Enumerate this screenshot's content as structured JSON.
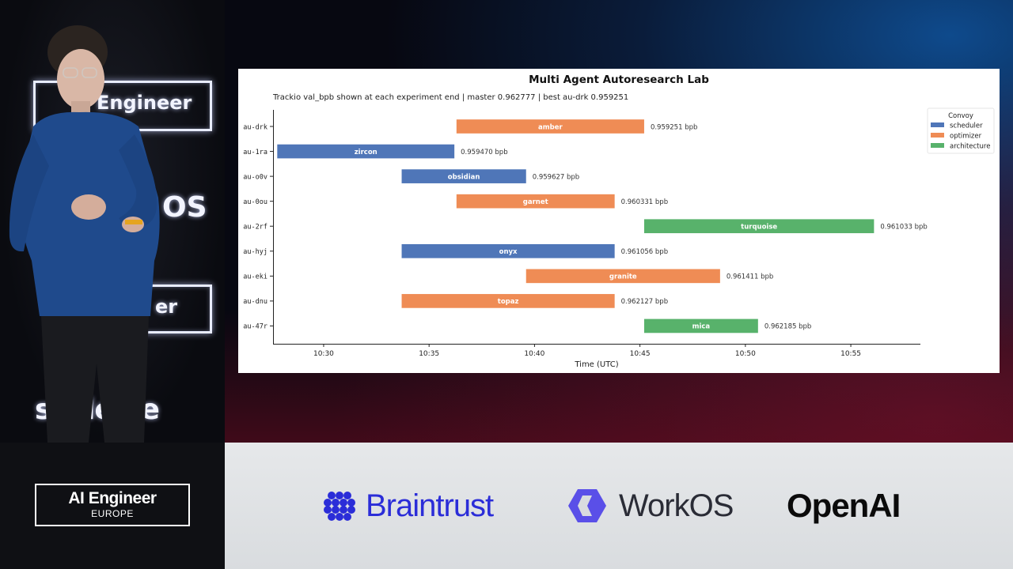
{
  "stage": {
    "backdrop_text_1": "Engineer",
    "backdrop_text_2": "OS",
    "backdrop_text_3": "er",
    "backdrop_text_4": "scaleale"
  },
  "event_logo": {
    "line1": "AI Engineer",
    "line2": "EUROPE"
  },
  "sponsors": [
    {
      "name": "Braintrust",
      "color": "#2b2dd8"
    },
    {
      "name": "WorkOS",
      "color": "#2a2c36",
      "accent": "#5a4fe8"
    },
    {
      "name": "OpenAI",
      "color": "#0b0b0b"
    }
  ],
  "chart_data": {
    "type": "gantt",
    "title": "Multi Agent Autoresearch Lab",
    "subtitle": "Trackio val_bpb shown at each experiment end | master 0.962777 | best au-drk 0.959251",
    "xlabel": "Time (UTC)",
    "x_ticks": [
      "10:30",
      "10:35",
      "10:40",
      "10:45",
      "10:50",
      "10:55"
    ],
    "xlim_minutes": [
      27.6,
      58.3
    ],
    "legend": {
      "title": "Convoy",
      "placement": "top-right",
      "entries": [
        {
          "name": "scheduler",
          "color": "#4f76b8"
        },
        {
          "name": "optimizer",
          "color": "#ef8c55"
        },
        {
          "name": "architecture",
          "color": "#58b26b"
        }
      ]
    },
    "rows": [
      {
        "id": "au-drk",
        "name": "amber",
        "convoy": "optimizer",
        "start": "10:36.3",
        "end": "10:45.2",
        "start_min": 36.3,
        "end_min": 45.2,
        "label": "0.959251 bpb"
      },
      {
        "id": "au-1ra",
        "name": "zircon",
        "convoy": "scheduler",
        "start": "10:27.8",
        "end": "10:36.2",
        "start_min": 27.8,
        "end_min": 36.2,
        "label": "0.959470 bpb"
      },
      {
        "id": "au-o0v",
        "name": "obsidian",
        "convoy": "scheduler",
        "start": "10:33.7",
        "end": "10:39.6",
        "start_min": 33.7,
        "end_min": 39.6,
        "label": "0.959627 bpb"
      },
      {
        "id": "au-0ou",
        "name": "garnet",
        "convoy": "optimizer",
        "start": "10:36.3",
        "end": "10:43.8",
        "start_min": 36.3,
        "end_min": 43.8,
        "label": "0.960331 bpb"
      },
      {
        "id": "au-2rf",
        "name": "turquoise",
        "convoy": "architecture",
        "start": "10:45.2",
        "end": "10:56.1",
        "start_min": 45.2,
        "end_min": 56.1,
        "label": "0.961033 bpb"
      },
      {
        "id": "au-hyj",
        "name": "onyx",
        "convoy": "scheduler",
        "start": "10:33.7",
        "end": "10:43.8",
        "start_min": 33.7,
        "end_min": 43.8,
        "label": "0.961056 bpb"
      },
      {
        "id": "au-eki",
        "name": "granite",
        "convoy": "optimizer",
        "start": "10:39.6",
        "end": "10:48.8",
        "start_min": 39.6,
        "end_min": 48.8,
        "label": "0.961411 bpb"
      },
      {
        "id": "au-dnu",
        "name": "topaz",
        "convoy": "optimizer",
        "start": "10:33.7",
        "end": "10:43.8",
        "start_min": 33.7,
        "end_min": 43.8,
        "label": "0.962127 bpb"
      },
      {
        "id": "au-47r",
        "name": "mica",
        "convoy": "architecture",
        "start": "10:45.2",
        "end": "10:50.6",
        "start_min": 45.2,
        "end_min": 50.6,
        "label": "0.962185 bpb"
      }
    ]
  }
}
